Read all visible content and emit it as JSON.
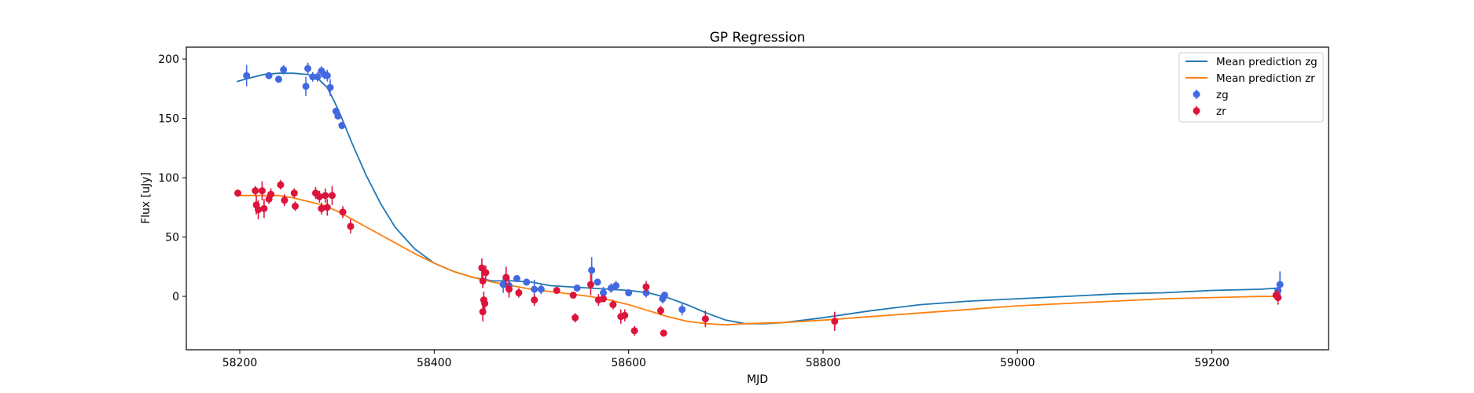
{
  "chart_data": {
    "type": "scatter",
    "title": "GP Regression",
    "xlabel": "MJD",
    "ylabel": "Flux [uJy]",
    "xlim": [
      58145,
      59320
    ],
    "ylim": [
      -45,
      210
    ],
    "xticks": [
      58200,
      58400,
      58600,
      58800,
      59000,
      59200
    ],
    "yticks": [
      0,
      50,
      100,
      150,
      200
    ],
    "grid": false,
    "legend_position": "top-right",
    "colors": {
      "mean_zg": "#1f77b4",
      "mean_zr": "#ff7f0e",
      "zg": "#4169e1",
      "zr": "#dc143c"
    },
    "lines": [
      {
        "name": "Mean prediction zg",
        "color": "#1f77b4",
        "x": [
          58197,
          58210,
          58225,
          58240,
          58255,
          58270,
          58280,
          58290,
          58298,
          58305,
          58315,
          58330,
          58345,
          58360,
          58380,
          58400,
          58420,
          58440,
          58460,
          58480,
          58500,
          58520,
          58540,
          58560,
          58580,
          58600,
          58620,
          58640,
          58660,
          58680,
          58700,
          58720,
          58740,
          58760,
          58780,
          58800,
          58850,
          58900,
          58950,
          59000,
          59050,
          59100,
          59150,
          59200,
          59250,
          59268
        ],
        "y": [
          181,
          184,
          187,
          188,
          188,
          187,
          184,
          176,
          163,
          150,
          130,
          102,
          78,
          58,
          40,
          28,
          21,
          16,
          13,
          13,
          12,
          9,
          8,
          7,
          6,
          5,
          3,
          -1,
          -7,
          -14,
          -20,
          -23,
          -23,
          -22,
          -20,
          -18,
          -12,
          -7,
          -4,
          -2,
          0,
          2,
          3,
          5,
          6,
          7
        ]
      },
      {
        "name": "Mean prediction zr",
        "color": "#ff7f0e",
        "x": [
          58197,
          58220,
          58240,
          58255,
          58270,
          58285,
          58300,
          58320,
          58340,
          58360,
          58380,
          58400,
          58420,
          58440,
          58460,
          58480,
          58500,
          58520,
          58540,
          58560,
          58580,
          58600,
          58620,
          58640,
          58660,
          58680,
          58700,
          58720,
          58760,
          58800,
          58850,
          58900,
          58950,
          59000,
          59050,
          59100,
          59150,
          59200,
          59250,
          59268
        ],
        "y": [
          85,
          85,
          85,
          83,
          80,
          77,
          72,
          63,
          54,
          45,
          36,
          28,
          21,
          16,
          12,
          9,
          6,
          4,
          2,
          0,
          -3,
          -7,
          -12,
          -17,
          -21,
          -23,
          -24,
          -23,
          -22,
          -20,
          -17,
          -14,
          -11,
          -8,
          -6,
          -4,
          -2,
          -1,
          0,
          0
        ]
      }
    ],
    "series": [
      {
        "name": "zg",
        "color": "#4169e1",
        "points": [
          [
            58207,
            186,
            9
          ],
          [
            58230,
            186,
            3
          ],
          [
            58240,
            183,
            3
          ],
          [
            58245,
            191,
            4
          ],
          [
            58268,
            177,
            8
          ],
          [
            58270,
            192,
            5
          ],
          [
            58275,
            185,
            4
          ],
          [
            58280,
            185,
            4
          ],
          [
            58284,
            190,
            4
          ],
          [
            58287,
            187,
            4
          ],
          [
            58290,
            186,
            5
          ],
          [
            58293,
            176,
            7
          ],
          [
            58299,
            156,
            3
          ],
          [
            58301,
            152,
            3
          ],
          [
            58305,
            144,
            3
          ],
          [
            58471,
            10,
            7
          ],
          [
            58477,
            9,
            7
          ],
          [
            58485,
            15,
            3
          ],
          [
            58495,
            12,
            3
          ],
          [
            58503,
            6,
            8
          ],
          [
            58510,
            6,
            4
          ],
          [
            58547,
            7,
            3
          ],
          [
            58562,
            22,
            11
          ],
          [
            58568,
            12,
            3
          ],
          [
            58574,
            3,
            5
          ],
          [
            58582,
            7,
            4
          ],
          [
            58587,
            9,
            4
          ],
          [
            58600,
            3,
            3
          ],
          [
            58618,
            3,
            4
          ],
          [
            58635,
            -2,
            4
          ],
          [
            58637,
            1,
            3
          ],
          [
            58655,
            -11,
            5
          ],
          [
            59268,
            5,
            6
          ],
          [
            59270,
            10,
            11
          ]
        ]
      },
      {
        "name": "zr",
        "color": "#dc143c",
        "points": [
          [
            58198,
            87,
            3
          ],
          [
            58216,
            89,
            4
          ],
          [
            58217,
            77,
            8
          ],
          [
            58219,
            73,
            8
          ],
          [
            58223,
            89,
            8
          ],
          [
            58225,
            74,
            8
          ],
          [
            58230,
            82,
            4
          ],
          [
            58232,
            86,
            5
          ],
          [
            58242,
            94,
            4
          ],
          [
            58246,
            81,
            5
          ],
          [
            58256,
            87,
            4
          ],
          [
            58257,
            76,
            4
          ],
          [
            58278,
            87,
            5
          ],
          [
            58282,
            84,
            5
          ],
          [
            58284,
            74,
            5
          ],
          [
            58288,
            85,
            6
          ],
          [
            58290,
            75,
            7
          ],
          [
            58295,
            85,
            8
          ],
          [
            58306,
            71,
            5
          ],
          [
            58314,
            59,
            6
          ],
          [
            58449,
            24,
            8
          ],
          [
            58450,
            13,
            6
          ],
          [
            58450,
            -13,
            8
          ],
          [
            58451,
            -3,
            7
          ],
          [
            58452,
            -6,
            5
          ],
          [
            58453,
            20,
            6
          ],
          [
            58474,
            16,
            9
          ],
          [
            58477,
            6,
            7
          ],
          [
            58487,
            3,
            4
          ],
          [
            58503,
            -3,
            5
          ],
          [
            58526,
            5,
            3
          ],
          [
            58543,
            1,
            3
          ],
          [
            58545,
            -18,
            4
          ],
          [
            58561,
            10,
            9
          ],
          [
            58569,
            -3,
            5
          ],
          [
            58574,
            -2,
            3
          ],
          [
            58584,
            -7,
            4
          ],
          [
            58592,
            -17,
            6
          ],
          [
            58596,
            -16,
            5
          ],
          [
            58606,
            -29,
            4
          ],
          [
            58618,
            8,
            5
          ],
          [
            58633,
            -12,
            4
          ],
          [
            58636,
            -31,
            3
          ],
          [
            58679,
            -19,
            7
          ],
          [
            58812,
            -21,
            8
          ],
          [
            59266,
            1,
            4
          ],
          [
            59268,
            -1,
            6
          ]
        ]
      }
    ]
  }
}
